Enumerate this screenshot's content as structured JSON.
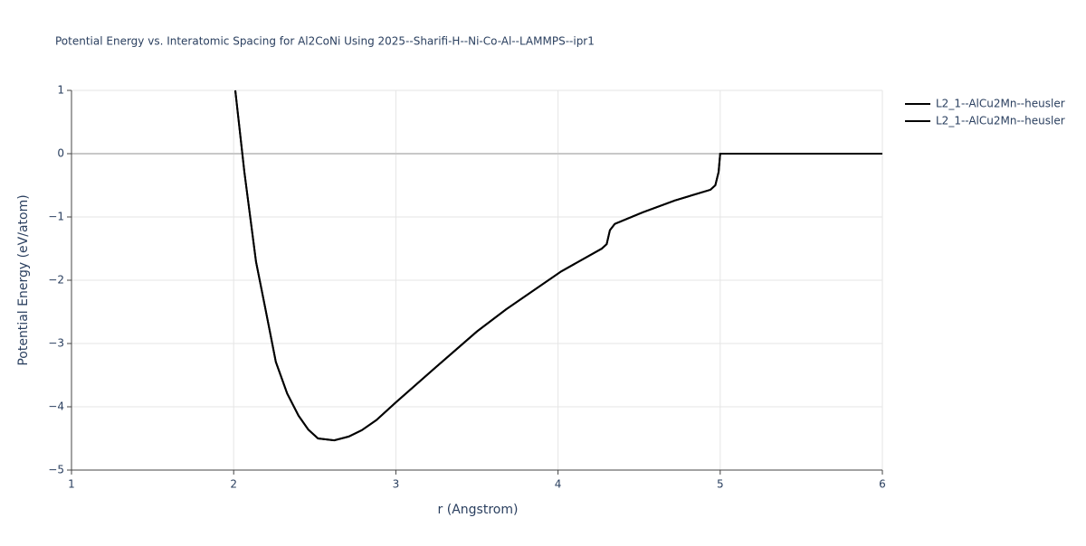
{
  "chart_data": {
    "type": "line",
    "title": "Potential Energy vs. Interatomic Spacing for Al2CoNi Using 2025--Sharifi-H--Ni-Co-Al--LAMMPS--ipr1",
    "x_label": "r (Angstrom)",
    "y_label": "Potential Energy (eV/atom)",
    "x": [
      2.01,
      2.066,
      2.138,
      2.194,
      2.26,
      2.33,
      2.4,
      2.46,
      2.52,
      2.62,
      2.71,
      2.79,
      2.88,
      3.0,
      3.24,
      3.5,
      3.68,
      3.85,
      4.02,
      4.27,
      4.3,
      4.32,
      4.35,
      4.52,
      4.72,
      4.94,
      4.97,
      4.99,
      5.0,
      6.0
    ],
    "series": [
      {
        "name": "L2_1--AlCu2Mn--heusler",
        "color": "#000000",
        "values": [
          1,
          -0.29,
          -1.71,
          -2.43,
          -3.29,
          -3.79,
          -4.14,
          -4.36,
          -4.5,
          -4.53,
          -4.47,
          -4.37,
          -4.21,
          -3.93,
          -3.39,
          -2.81,
          -2.46,
          -2.16,
          -1.86,
          -1.5,
          -1.43,
          -1.21,
          -1.11,
          -0.93,
          -0.74,
          -0.57,
          -0.5,
          -0.29,
          0,
          0
        ]
      },
      {
        "name": "L2_1--AlCu2Mn--heusler",
        "color": "#000000",
        "values": [
          1,
          -0.29,
          -1.71,
          -2.43,
          -3.29,
          -3.79,
          -4.14,
          -4.36,
          -4.5,
          -4.53,
          -4.47,
          -4.37,
          -4.21,
          -3.93,
          -3.39,
          -2.81,
          -2.46,
          -2.16,
          -1.86,
          -1.5,
          -1.43,
          -1.21,
          -1.11,
          -0.93,
          -0.74,
          -0.57,
          -0.5,
          -0.29,
          0,
          0
        ]
      }
    ],
    "xlim": [
      1,
      6
    ],
    "xticks": [
      1,
      2,
      3,
      4,
      5,
      6
    ],
    "ylim": [
      -5,
      1
    ],
    "yticks": [
      {
        "value": -5,
        "label": "−5"
      },
      {
        "value": -4,
        "label": "−4"
      },
      {
        "value": -3,
        "label": "−3"
      },
      {
        "value": -2,
        "label": "−2"
      },
      {
        "value": -1,
        "label": "−1"
      },
      0,
      1
    ],
    "grid": true,
    "legend": "right"
  }
}
